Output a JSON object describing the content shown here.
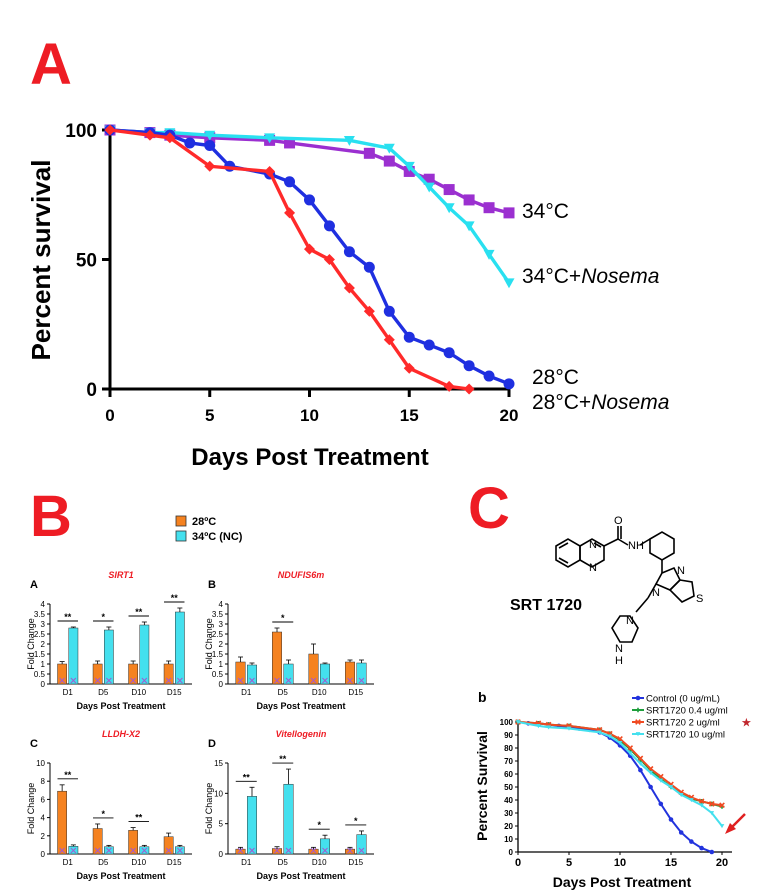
{
  "panels": {
    "A": {
      "letter": "A",
      "chart_data": {
        "type": "line",
        "xlabel": "Days Post Treatment",
        "ylabel": "Percent survival",
        "xlim": [
          0,
          20
        ],
        "ylim": [
          0,
          100
        ],
        "xticks": [
          0,
          5,
          10,
          15,
          20
        ],
        "yticks": [
          0,
          50,
          100
        ],
        "series": [
          {
            "name": "34°C",
            "color": "#9b30d0",
            "marker": "square",
            "x": [
              0,
              2,
              3,
              5,
              8,
              9,
              13,
              14,
              15,
              16,
              17,
              18,
              19,
              20
            ],
            "y": [
              100,
              99,
              98,
              97,
              96,
              95,
              91,
              88,
              84,
              81,
              77,
              73,
              70,
              68
            ]
          },
          {
            "name": "34°C+Nosema",
            "nameItalic": "Nosema",
            "nameStart": "34°C+",
            "color": "#29e0f0",
            "marker": "triangle",
            "x": [
              0,
              2,
              3,
              5,
              8,
              12,
              14,
              15,
              16,
              17,
              18,
              19,
              20
            ],
            "y": [
              100,
              99,
              99,
              98,
              97,
              96,
              93,
              86,
              78,
              70,
              63,
              52,
              41
            ]
          },
          {
            "name": "28°C",
            "color": "#1f2fe0",
            "marker": "circle",
            "x": [
              0,
              2,
              3,
              4,
              5,
              6,
              8,
              9,
              10,
              11,
              12,
              13,
              14,
              15,
              16,
              17,
              18,
              19,
              20
            ],
            "y": [
              100,
              99,
              98,
              95,
              94,
              86,
              83,
              80,
              73,
              63,
              53,
              47,
              30,
              20,
              17,
              14,
              9,
              5,
              2
            ]
          },
          {
            "name": "28°C+Nosema",
            "nameItalic": "Nosema",
            "nameStart": "28°C+",
            "color": "#ff2a2a",
            "marker": "diamond",
            "x": [
              0,
              2,
              3,
              5,
              8,
              9,
              10,
              11,
              12,
              13,
              14,
              15,
              17,
              18
            ],
            "y": [
              100,
              98,
              97,
              86,
              84,
              68,
              54,
              50,
              39,
              30,
              19,
              8,
              1,
              0
            ]
          }
        ]
      }
    },
    "B": {
      "letter": "B",
      "legend": [
        {
          "label": "28ºC",
          "color": "#f58220"
        },
        {
          "label": "34ºC (NC)",
          "color": "#44e0ee"
        }
      ],
      "subplots": [
        {
          "letter": "A",
          "title": "SIRT1",
          "ylabel": "Fold Change",
          "xlabel": "Days Post Treatment",
          "chart_data": {
            "type": "bar",
            "categories": [
              "D1",
              "D5",
              "D10",
              "D15"
            ],
            "ylim": [
              0,
              4
            ],
            "yticks": [
              0,
              0.5,
              1,
              1.5,
              2,
              2.5,
              3,
              3.5,
              4
            ],
            "ytick_labels": [
              "0",
              "0.5",
              "1",
              "1.5",
              "2",
              "2.5",
              "3",
              "3.5",
              "4"
            ],
            "series": [
              {
                "values": [
                  1.0,
                  1.0,
                  1.0,
                  1.0
                ],
                "errors": [
                  0.12,
                  0.15,
                  0.15,
                  0.15
                ]
              },
              {
                "values": [
                  2.8,
                  2.7,
                  2.95,
                  3.6
                ],
                "errors": [
                  0.05,
                  0.15,
                  0.15,
                  0.2
                ]
              }
            ],
            "sig": [
              "**",
              "*",
              "**",
              "**"
            ]
          }
        },
        {
          "letter": "B",
          "title": "NDUFIS6m",
          "ylabel": "Fold Change",
          "xlabel": "Days Post Treatment",
          "chart_data": {
            "type": "bar",
            "categories": [
              "D1",
              "D5",
              "D10",
              "D15"
            ],
            "ylim": [
              0,
              4
            ],
            "yticks": [
              0,
              0.5,
              1,
              1.5,
              2,
              2.5,
              3,
              3.5,
              4
            ],
            "ytick_labels": [
              "0",
              "0.5",
              "1",
              "1.5",
              "2",
              "2.5",
              "3",
              "3.5",
              "4"
            ],
            "series": [
              {
                "values": [
                  1.1,
                  2.6,
                  1.5,
                  1.1
                ],
                "errors": [
                  0.25,
                  0.2,
                  0.5,
                  0.1
                ]
              },
              {
                "values": [
                  0.95,
                  1.0,
                  1.0,
                  1.05
                ],
                "errors": [
                  0.1,
                  0.2,
                  0.05,
                  0.15
                ]
              }
            ],
            "sig": [
              "",
              "*",
              "",
              ""
            ]
          }
        },
        {
          "letter": "C",
          "title": "LLDH-X2",
          "ylabel": "Fold Change",
          "xlabel": "Days Post Treatment",
          "chart_data": {
            "type": "bar",
            "categories": [
              "D1",
              "D5",
              "D10",
              "D15"
            ],
            "ylim": [
              0,
              10
            ],
            "yticks": [
              0,
              2,
              4,
              6,
              8,
              10
            ],
            "ytick_labels": [
              "0",
              "2",
              "4",
              "6",
              "8",
              "10"
            ],
            "series": [
              {
                "values": [
                  6.9,
                  2.8,
                  2.6,
                  1.9
                ],
                "errors": [
                  0.7,
                  0.5,
                  0.3,
                  0.4
                ]
              },
              {
                "values": [
                  0.85,
                  0.8,
                  0.8,
                  0.8
                ],
                "errors": [
                  0.15,
                  0.15,
                  0.15,
                  0.15
                ]
              }
            ],
            "sig": [
              "**",
              "*",
              "**",
              ""
            ]
          }
        },
        {
          "letter": "D",
          "title": "Vitellogenin",
          "ylabel": "Fold Change",
          "xlabel": "Days Post Treatment",
          "chart_data": {
            "type": "bar",
            "categories": [
              "D1",
              "D5",
              "D10",
              "D15"
            ],
            "ylim": [
              0,
              15
            ],
            "yticks": [
              0,
              5,
              10,
              15
            ],
            "ytick_labels": [
              "0",
              "5",
              "10",
              "15"
            ],
            "series": [
              {
                "values": [
                  0.8,
                  0.9,
                  0.8,
                  0.8
                ],
                "errors": [
                  0.3,
                  0.3,
                  0.3,
                  0.3
                ]
              },
              {
                "values": [
                  9.5,
                  11.5,
                  2.5,
                  3.2
                ],
                "errors": [
                  1.5,
                  2.5,
                  0.6,
                  0.6
                ]
              }
            ],
            "sig": [
              "**",
              "**",
              "*",
              "*"
            ]
          }
        }
      ]
    },
    "C": {
      "letter": "C",
      "compound_label": "SRT 1720",
      "structure_atoms": [
        "O",
        "N",
        "N",
        "N",
        "H",
        "N",
        "S",
        "N",
        "N",
        "N",
        "H"
      ],
      "subplot": {
        "letter": "b",
        "chart_data": {
          "type": "line",
          "xlabel": "Days Post Treatment",
          "ylabel": "Percent Survival",
          "xlim": [
            0,
            20
          ],
          "ylim": [
            0,
            100
          ],
          "xticks": [
            0,
            5,
            10,
            15,
            20
          ],
          "yticks": [
            0,
            10,
            20,
            30,
            40,
            50,
            60,
            70,
            80,
            90,
            100
          ],
          "series": [
            {
              "name": "Control (0 ug/mL)",
              "color": "#2233dd",
              "marker": "circle",
              "x": [
                0,
                1,
                2,
                3,
                4,
                5,
                6,
                7,
                8,
                9,
                10,
                11,
                12,
                13,
                14,
                15,
                16,
                17,
                18,
                19
              ],
              "y": [
                100,
                99,
                99,
                98,
                97,
                96,
                95,
                94,
                92,
                88,
                82,
                74,
                63,
                50,
                37,
                25,
                15,
                8,
                3,
                0
              ]
            },
            {
              "name": "SRT1720 0.4 ug/ml",
              "color": "#1e9e3c",
              "marker": "plus",
              "x": [
                0,
                2,
                3,
                5,
                8,
                9,
                10,
                11,
                12,
                13,
                14,
                15,
                16,
                17,
                18,
                19,
                20
              ],
              "y": [
                100,
                99,
                98,
                97,
                94,
                91,
                86,
                79,
                71,
                63,
                56,
                50,
                45,
                41,
                39,
                37,
                35
              ]
            },
            {
              "name": "SRT1720 2 ug/ml",
              "star": "★",
              "color": "#f04a22",
              "marker": "x",
              "x": [
                0,
                2,
                3,
                5,
                8,
                9,
                10,
                11,
                12,
                13,
                14,
                15,
                16,
                17,
                18,
                19,
                20
              ],
              "y": [
                100,
                99,
                98,
                97,
                94,
                91,
                87,
                80,
                72,
                64,
                58,
                52,
                46,
                42,
                39,
                37,
                36
              ]
            },
            {
              "name": "SRT1720 10 ug/ml",
              "color": "#44e0ee",
              "marker": "triangle",
              "x": [
                0,
                2,
                3,
                5,
                8,
                9,
                10,
                11,
                12,
                13,
                14,
                15,
                16,
                17,
                18,
                19,
                20
              ],
              "y": [
                100,
                97,
                96,
                95,
                92,
                89,
                84,
                76,
                68,
                61,
                55,
                50,
                44,
                40,
                36,
                30,
                20
              ]
            }
          ],
          "arrow_color": "#e02020"
        }
      }
    }
  }
}
